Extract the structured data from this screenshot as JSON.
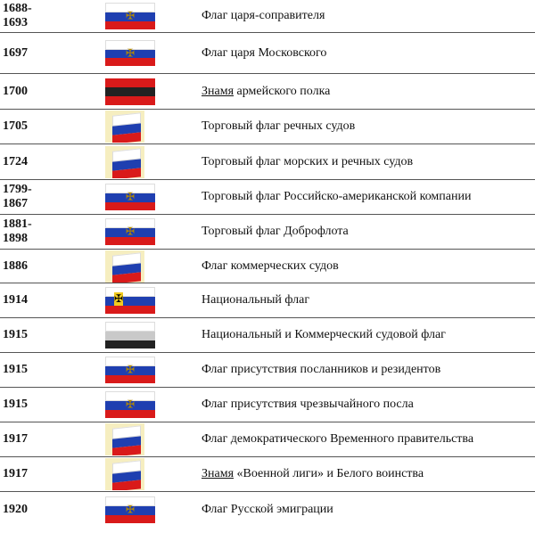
{
  "rows": [
    {
      "year": "1688-\n1693",
      "desc": "Флаг царя-соправителя",
      "flag": [
        "w",
        "b",
        "r"
      ],
      "emblem": "eagle"
    },
    {
      "year": "1697",
      "desc": "Флаг царя Московского",
      "flag": [
        "w",
        "b",
        "r"
      ],
      "emblem": "eagle"
    },
    {
      "year": "1700",
      "link": "Знамя",
      "desc": " армейского полка",
      "flag": [
        "r",
        "k",
        "r"
      ]
    },
    {
      "year": "1705",
      "desc": "Торговый флаг речных судов",
      "flag": [
        "w",
        "b",
        "r"
      ],
      "wave": true
    },
    {
      "year": "1724",
      "desc": "Торговый флаг морских и речных судов",
      "flag": [
        "w",
        "b",
        "r"
      ],
      "wave": true
    },
    {
      "year": "1799-\n1867",
      "desc": "Торговый флаг Российско-американской компании",
      "flag": [
        "w",
        "b",
        "r"
      ],
      "emblem": "eagle"
    },
    {
      "year": "1881-\n1898",
      "desc": "Торговый флаг Доброфлота",
      "flag": [
        "w",
        "b",
        "r"
      ],
      "emblem": "eagle"
    },
    {
      "year": "1886",
      "desc": "Флаг коммерческих судов",
      "flag": [
        "w",
        "b",
        "r"
      ],
      "wave": true
    },
    {
      "year": "1914",
      "desc": "Национальный флаг",
      "flag": [
        "w",
        "b",
        "r"
      ],
      "emblem": "eagle-yellow"
    },
    {
      "year": "1915",
      "desc": "Национальный и Коммерческий судовой флаг",
      "flag": [
        "w",
        "g",
        "k"
      ]
    },
    {
      "year": "1915",
      "desc": "Флаг присутствия посланников и резидентов",
      "flag": [
        "w",
        "b",
        "r"
      ],
      "emblem": "eagle"
    },
    {
      "year": "1915",
      "desc": "Флаг присутствия чрезвычайного посла",
      "flag": [
        "w",
        "b",
        "r"
      ],
      "emblem": "eagle"
    },
    {
      "year": "1917",
      "desc": "Флаг демократического Временного правительства",
      "flag": [
        "w",
        "b",
        "r"
      ],
      "wave": true
    },
    {
      "year": "1917",
      "link": "Знамя",
      "desc": " «Военной лиги» и Белого воинства",
      "flag": [
        "w",
        "b",
        "r"
      ],
      "wave": true
    },
    {
      "year": "1920",
      "desc": "Флаг Русской эмиграции",
      "flag": [
        "w",
        "b",
        "r"
      ],
      "emblem": "eagle"
    }
  ]
}
